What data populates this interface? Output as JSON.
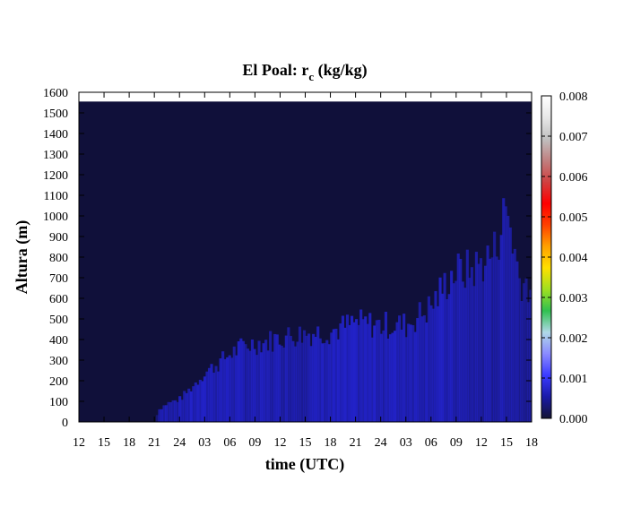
{
  "chart_data": {
    "type": "heatmap",
    "title": "El Poal: r",
    "title_subscript": "c",
    "title_units": " (kg/kg)",
    "xlabel": "time (UTC)",
    "ylabel": "Altura (m)",
    "x_tick_labels": [
      "12",
      "15",
      "18",
      "21",
      "24",
      "03",
      "06",
      "09",
      "12",
      "15",
      "18",
      "21",
      "24",
      "03",
      "06",
      "09",
      "12",
      "15",
      "18"
    ],
    "x_range_hours": [
      0,
      54
    ],
    "y_ticks": [
      0,
      100,
      200,
      300,
      400,
      500,
      600,
      700,
      800,
      900,
      1000,
      1100,
      1200,
      1300,
      1400,
      1500,
      1600
    ],
    "ylim": [
      0,
      1600
    ],
    "data_top_m": 1555,
    "colorbar": {
      "min": 0.0,
      "max": 0.008,
      "tick_labels": [
        "0.000",
        "0.001",
        "0.002",
        "0.003",
        "0.004",
        "0.005",
        "0.006",
        "0.007",
        "0.008"
      ],
      "colors": [
        "#151535",
        "#1a1aa8",
        "#3b3bff",
        "#8a8aff",
        "#b0d8e8",
        "#30c050",
        "#a0e020",
        "#ffe000",
        "#ffa000",
        "#ff4000",
        "#ff0000",
        "#d04040",
        "#c08080",
        "#c0c0c0",
        "#e8e8e8",
        "#ffffff"
      ]
    },
    "background_color": "#10103a",
    "cloud_color": "#2222c8",
    "cloud_layer": [
      {
        "t": 0,
        "top": 0,
        "v": 0
      },
      {
        "t": 9,
        "top": 0,
        "v": 0
      },
      {
        "t": 9.5,
        "top": 60,
        "v": 0.0008
      },
      {
        "t": 10.5,
        "top": 90,
        "v": 0.0009
      },
      {
        "t": 12,
        "top": 110,
        "v": 0.0009
      },
      {
        "t": 13.5,
        "top": 170,
        "v": 0.001
      },
      {
        "t": 15,
        "top": 240,
        "v": 0.001
      },
      {
        "t": 16.5,
        "top": 280,
        "v": 0.001
      },
      {
        "t": 18,
        "top": 330,
        "v": 0.001
      },
      {
        "t": 20,
        "top": 375,
        "v": 0.0009
      },
      {
        "t": 22.5,
        "top": 390,
        "v": 0.0009
      },
      {
        "t": 24,
        "top": 410,
        "v": 0.0009
      },
      {
        "t": 27,
        "top": 430,
        "v": 0.0009
      },
      {
        "t": 30,
        "top": 440,
        "v": 0.001
      },
      {
        "t": 33,
        "top": 480,
        "v": 0.0011
      },
      {
        "t": 36,
        "top": 470,
        "v": 0.001
      },
      {
        "t": 39,
        "top": 470,
        "v": 0.001
      },
      {
        "t": 42,
        "top": 560,
        "v": 0.001
      },
      {
        "t": 44.5,
        "top": 720,
        "v": 0.0009
      },
      {
        "t": 47,
        "top": 740,
        "v": 0.0008
      },
      {
        "t": 49.5,
        "top": 820,
        "v": 0.0008
      },
      {
        "t": 51,
        "top": 1050,
        "v": 0.0009
      },
      {
        "t": 52.5,
        "top": 700,
        "v": 0.0008
      },
      {
        "t": 54,
        "top": 650,
        "v": 0.0007
      }
    ]
  }
}
